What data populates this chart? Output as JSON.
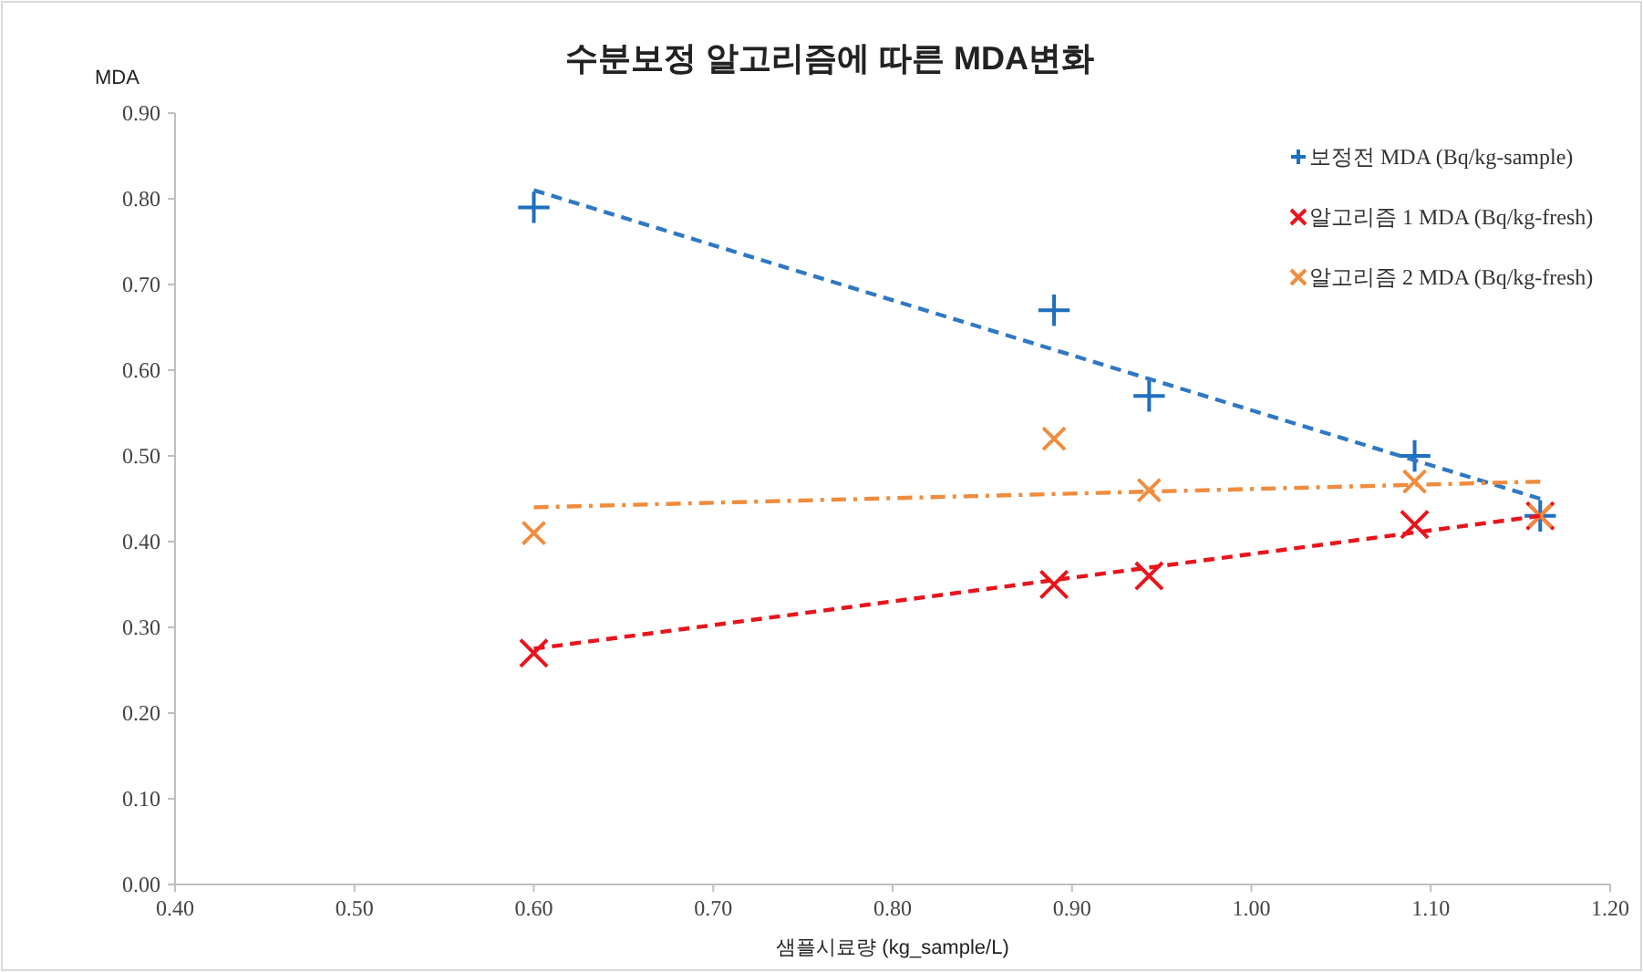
{
  "chart_data": {
    "type": "scatter",
    "title": "수분보정 알고리즘에 따른 MDA변화",
    "xlabel": "샘플시료량 (kg_sample/L)",
    "ylabel": "MDA",
    "xlim": [
      0.4,
      1.2
    ],
    "xticks": [
      {
        "value": 0.4,
        "label": "0.40"
      },
      {
        "value": 0.5,
        "label": "0.50"
      },
      {
        "value": 0.6,
        "label": "0.60"
      },
      {
        "value": 0.7,
        "label": "0.70"
      },
      {
        "value": 0.8,
        "label": "0.80"
      },
      {
        "value": 0.9,
        "label": "0.90"
      },
      {
        "value": 1.0,
        "label": "1.00"
      },
      {
        "value": 1.1,
        "label": "1.10"
      },
      {
        "value": 1.2,
        "label": "1.20"
      }
    ],
    "ylim": [
      0,
      0.9
    ],
    "yticks": [
      {
        "value": 0,
        "label": "0.00"
      },
      {
        "value": 0.1,
        "label": "0.10"
      },
      {
        "value": 0.2,
        "label": "0.20"
      },
      {
        "value": 0.3,
        "label": "0.30"
      },
      {
        "value": 0.4,
        "label": "0.40"
      },
      {
        "value": 0.5,
        "label": "0.50"
      },
      {
        "value": 0.6,
        "label": "0.60"
      },
      {
        "value": 0.7,
        "label": "0.70"
      },
      {
        "value": 0.8,
        "label": "0.80"
      },
      {
        "value": 0.9,
        "label": "0.90"
      }
    ],
    "grid": false,
    "legend": "top right",
    "series": [
      {
        "name": "보정전 MDA (Bq/kg-sample)",
        "marker": "plus",
        "color": "#1f6fbf",
        "x": [
          0.6,
          0.89,
          0.943,
          1.091,
          1.161
        ],
        "values": [
          0.79,
          0.67,
          0.57,
          0.5,
          0.43
        ]
      },
      {
        "name": "알고리즘 1 MDA (Bq/kg-fresh)",
        "marker": "cross",
        "color": "#e8141c",
        "x": [
          0.6,
          0.89,
          0.943,
          1.091,
          1.161
        ],
        "values": [
          0.27,
          0.35,
          0.36,
          0.42,
          0.43
        ]
      },
      {
        "name": "알고리즘 2 MDA (Bq/kg-fresh)",
        "marker": "cross",
        "color": "#ef8c3e",
        "x": [
          0.6,
          0.89,
          0.943,
          1.091,
          1.161
        ],
        "values": [
          0.41,
          0.52,
          0.46,
          0.47,
          0.43
        ]
      },
      {
        "type": "line",
        "line_style": "dashed",
        "color": "#2f78c4",
        "x": [
          0.6,
          1.161
        ],
        "values": [
          0.81,
          0.45
        ]
      },
      {
        "type": "line",
        "line_style": "dashed",
        "color": "#e8141c",
        "x": [
          0.6,
          1.161
        ],
        "values": [
          0.275,
          0.43
        ]
      },
      {
        "type": "line",
        "line_style": "dashdot",
        "color": "#ef8c3e",
        "x": [
          0.6,
          1.161
        ],
        "values": [
          0.44,
          0.47
        ]
      }
    ]
  }
}
